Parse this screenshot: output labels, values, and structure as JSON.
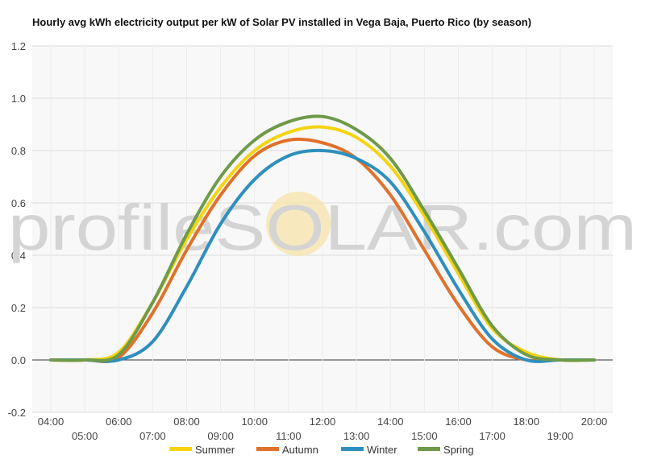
{
  "chart_data": {
    "type": "line",
    "title": "Hourly avg kWh electricity output per kW of Solar PV installed in Vega Baja, Puerto Rico (by season)",
    "xlabel": "",
    "ylabel": "",
    "x": [
      "04:00",
      "05:00",
      "06:00",
      "07:00",
      "08:00",
      "09:00",
      "10:00",
      "11:00",
      "12:00",
      "13:00",
      "14:00",
      "15:00",
      "16:00",
      "17:00",
      "18:00",
      "19:00",
      "20:00"
    ],
    "ylim": [
      -0.2,
      1.2
    ],
    "yticks": [
      -0.2,
      0.0,
      0.2,
      0.4,
      0.6,
      0.8,
      1.0,
      1.2
    ],
    "ytick_labels": [
      "-0.2",
      "0.0",
      "0.2",
      "0.4",
      "0.6",
      "0.8",
      "1.0",
      "1.2"
    ],
    "grid": true,
    "legend_position": "bottom",
    "series": [
      {
        "name": "Summer",
        "color": "#f4d40f",
        "values": [
          0.0,
          0.0,
          0.03,
          0.22,
          0.46,
          0.66,
          0.8,
          0.87,
          0.89,
          0.85,
          0.74,
          0.55,
          0.33,
          0.12,
          0.03,
          0.0,
          0.0
        ]
      },
      {
        "name": "Autumn",
        "color": "#e0712a",
        "values": [
          0.0,
          0.0,
          0.01,
          0.18,
          0.42,
          0.63,
          0.78,
          0.84,
          0.83,
          0.77,
          0.63,
          0.42,
          0.21,
          0.05,
          0.0,
          0.0,
          0.0
        ]
      },
      {
        "name": "Winter",
        "color": "#2e8fbe",
        "values": [
          0.0,
          0.0,
          0.0,
          0.07,
          0.28,
          0.52,
          0.69,
          0.78,
          0.8,
          0.77,
          0.68,
          0.49,
          0.27,
          0.08,
          0.0,
          0.0,
          0.0
        ]
      },
      {
        "name": "Spring",
        "color": "#6e9a4a",
        "values": [
          0.0,
          0.0,
          0.02,
          0.22,
          0.48,
          0.7,
          0.84,
          0.91,
          0.93,
          0.88,
          0.77,
          0.57,
          0.35,
          0.13,
          0.02,
          0.0,
          0.0
        ]
      }
    ]
  },
  "watermark": {
    "text": "profileSOLAR.com",
    "color": "#d4d4d4",
    "sun_color": "#f7e4a9"
  }
}
